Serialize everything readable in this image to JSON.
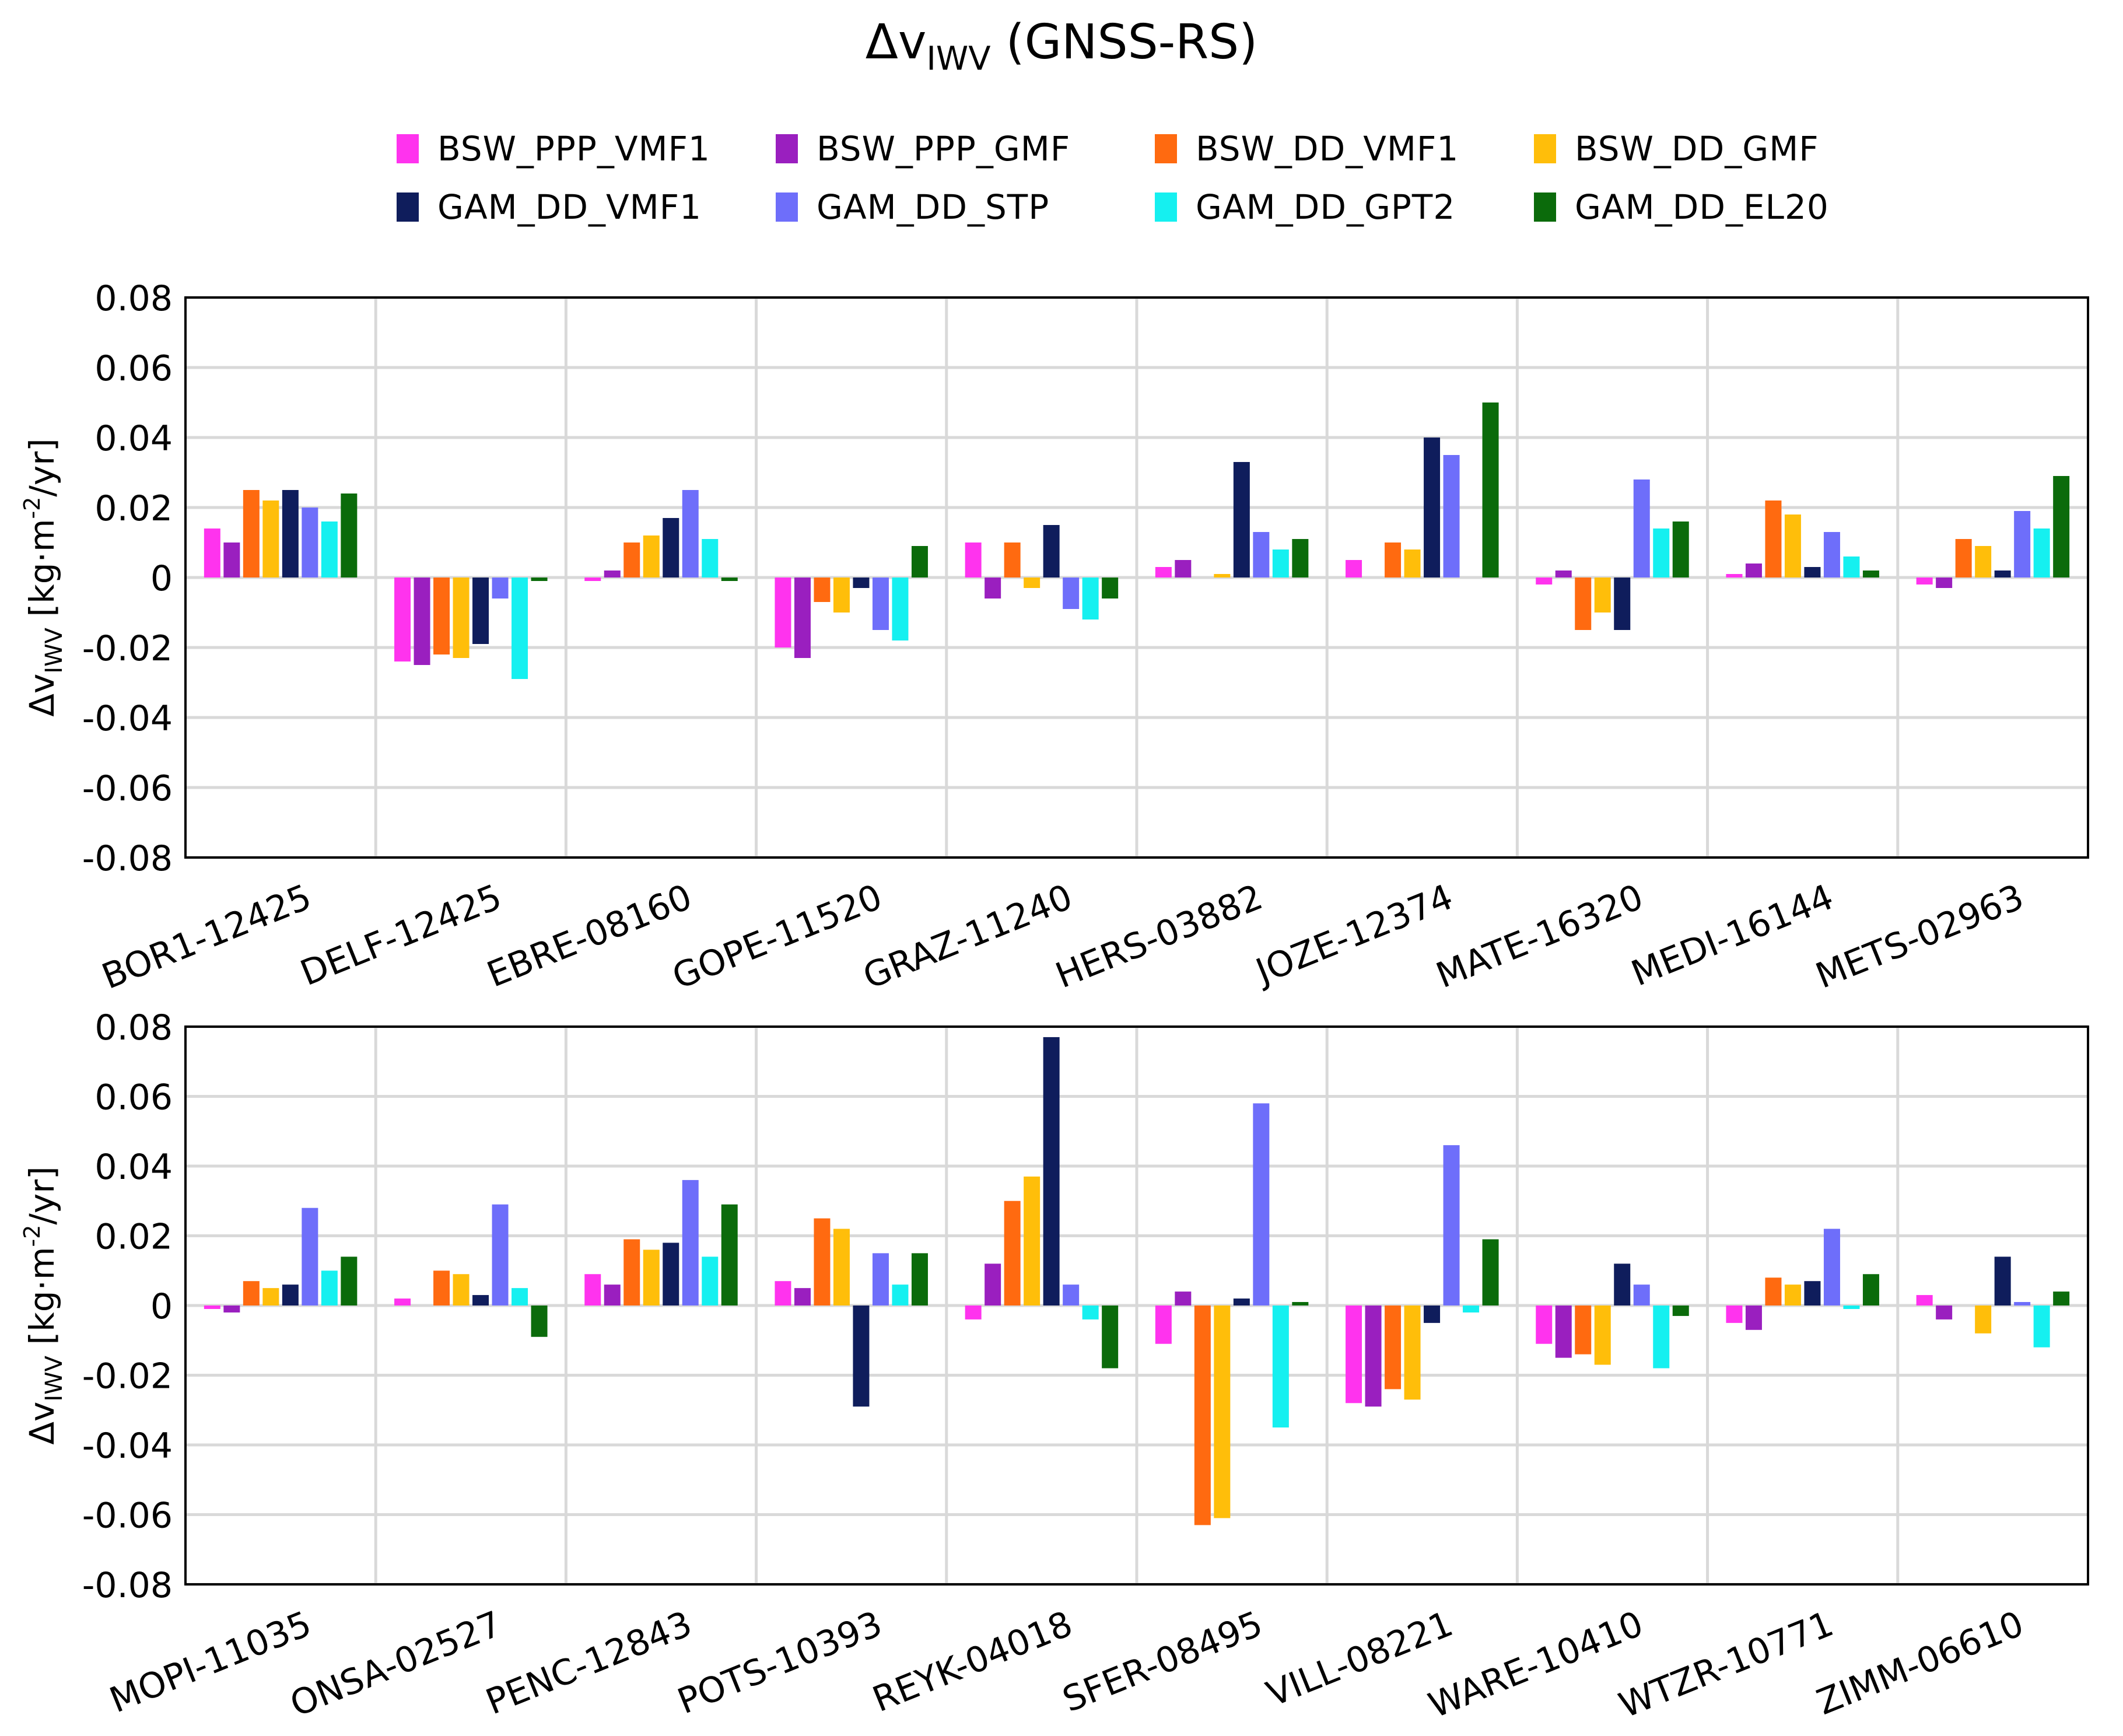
{
  "title": {
    "prefix": "Δv",
    "subscript": "IWV",
    "suffix": " (GNSS-RS)"
  },
  "ylabel": {
    "prefix": "Δv",
    "subscript": "IWV",
    "mid": " [kg·m",
    "sup": "-2",
    "end": "/yr]"
  },
  "legend": [
    {
      "label": "BSW_PPP_VMF1",
      "color": "#ff33ee"
    },
    {
      "label": "BSW_PPP_GMF",
      "color": "#9a1fbf"
    },
    {
      "label": "BSW_DD_VMF1",
      "color": "#ff6a10"
    },
    {
      "label": "BSW_DD_GMF",
      "color": "#ffbe0a"
    },
    {
      "label": "GAM_DD_VMF1",
      "color": "#0f1d5c"
    },
    {
      "label": "GAM_DD_STP",
      "color": "#6e6efa"
    },
    {
      "label": "GAM_DD_GPT2",
      "color": "#15f0f0"
    },
    {
      "label": "GAM_DD_EL20",
      "color": "#0b6b0b"
    }
  ],
  "chart_data": [
    {
      "type": "bar",
      "ylim": [
        -0.08,
        0.08
      ],
      "yticks": [
        "0.08",
        "0.06",
        "0.04",
        "0.02",
        "0",
        "-0.02",
        "-0.04",
        "-0.06",
        "-0.08"
      ],
      "grid": true,
      "categories": [
        "BOR1-12425",
        "DELF-12425",
        "EBRE-08160",
        "GOPE-11520",
        "GRAZ-11240",
        "HERS-03882",
        "JOZE-12374",
        "MATE-16320",
        "MEDI-16144",
        "METS-02963"
      ],
      "series": [
        {
          "name": "BSW_PPP_VMF1",
          "values": [
            0.014,
            -0.024,
            -0.001,
            -0.02,
            0.01,
            0.003,
            0.005,
            -0.002,
            0.001,
            -0.002
          ]
        },
        {
          "name": "BSW_PPP_GMF",
          "values": [
            0.01,
            -0.025,
            0.002,
            -0.023,
            -0.006,
            0.005,
            null,
            0.002,
            0.004,
            -0.003
          ]
        },
        {
          "name": "BSW_DD_VMF1",
          "values": [
            0.025,
            -0.022,
            0.01,
            -0.007,
            0.01,
            null,
            0.01,
            -0.015,
            0.022,
            0.011
          ]
        },
        {
          "name": "BSW_DD_GMF",
          "values": [
            0.022,
            -0.023,
            0.012,
            -0.01,
            -0.003,
            0.001,
            0.008,
            -0.01,
            0.018,
            0.009
          ]
        },
        {
          "name": "GAM_DD_VMF1",
          "values": [
            0.025,
            -0.019,
            0.017,
            -0.003,
            0.015,
            0.033,
            0.04,
            -0.015,
            0.003,
            0.002
          ]
        },
        {
          "name": "GAM_DD_STP",
          "values": [
            0.02,
            -0.006,
            0.025,
            -0.015,
            -0.009,
            0.013,
            0.035,
            0.028,
            0.013,
            0.019
          ]
        },
        {
          "name": "GAM_DD_GPT2",
          "values": [
            0.016,
            -0.029,
            0.011,
            -0.018,
            -0.012,
            0.008,
            null,
            0.014,
            0.006,
            0.014
          ]
        },
        {
          "name": "GAM_DD_EL20",
          "values": [
            0.024,
            -0.001,
            -0.001,
            0.009,
            -0.006,
            0.011,
            0.05,
            0.016,
            0.002,
            0.029
          ]
        }
      ]
    },
    {
      "type": "bar",
      "ylim": [
        -0.08,
        0.08
      ],
      "yticks": [
        "0.08",
        "0.06",
        "0.04",
        "0.02",
        "0",
        "-0.02",
        "-0.04",
        "-0.06",
        "-0.08"
      ],
      "grid": true,
      "categories": [
        "MOPI-11035",
        "ONSA-02527",
        "PENC-12843",
        "POTS-10393",
        "REYK-04018",
        "SFER-08495",
        "VILL-08221",
        "WARE-10410",
        "WTZR-10771",
        "ZIMM-06610"
      ],
      "series": [
        {
          "name": "BSW_PPP_VMF1",
          "values": [
            -0.001,
            0.002,
            0.009,
            0.007,
            -0.004,
            -0.011,
            -0.028,
            -0.011,
            -0.005,
            0.003
          ]
        },
        {
          "name": "BSW_PPP_GMF",
          "values": [
            -0.002,
            null,
            0.006,
            0.005,
            0.012,
            0.004,
            -0.029,
            -0.015,
            -0.007,
            -0.004
          ]
        },
        {
          "name": "BSW_DD_VMF1",
          "values": [
            0.007,
            0.01,
            0.019,
            0.025,
            0.03,
            -0.063,
            -0.024,
            -0.014,
            0.008,
            null
          ]
        },
        {
          "name": "BSW_DD_GMF",
          "values": [
            0.005,
            0.009,
            0.016,
            0.022,
            0.037,
            -0.061,
            -0.027,
            -0.017,
            0.006,
            -0.008
          ]
        },
        {
          "name": "GAM_DD_VMF1",
          "values": [
            0.006,
            0.003,
            0.018,
            -0.029,
            0.077,
            0.002,
            -0.005,
            0.012,
            0.007,
            0.014
          ]
        },
        {
          "name": "GAM_DD_STP",
          "values": [
            0.028,
            0.029,
            0.036,
            0.015,
            0.006,
            0.058,
            0.046,
            0.006,
            0.022,
            0.001
          ]
        },
        {
          "name": "GAM_DD_GPT2",
          "values": [
            0.01,
            0.005,
            0.014,
            0.006,
            -0.004,
            -0.035,
            -0.002,
            -0.018,
            -0.001,
            -0.012
          ]
        },
        {
          "name": "GAM_DD_EL20",
          "values": [
            0.014,
            -0.009,
            0.029,
            0.015,
            -0.018,
            0.001,
            0.019,
            -0.003,
            0.009,
            0.004
          ]
        }
      ]
    }
  ]
}
